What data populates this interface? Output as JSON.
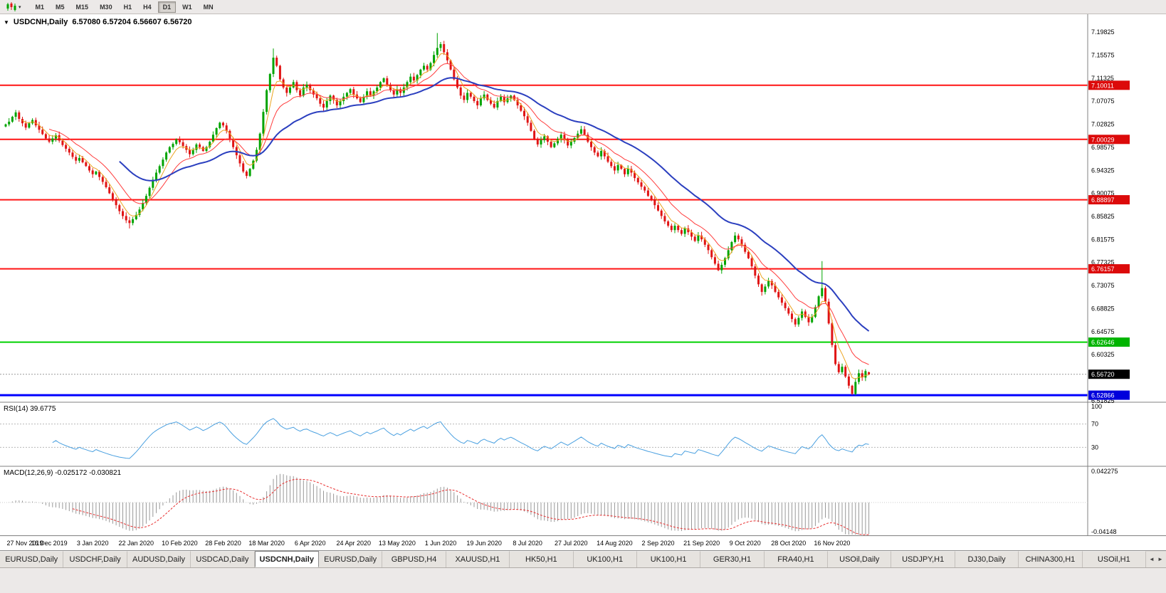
{
  "toolbar": {
    "chart_menu_caret": "▾",
    "timeframes": [
      "M1",
      "M5",
      "M15",
      "M30",
      "H1",
      "H4",
      "D1",
      "W1",
      "MN"
    ],
    "active_timeframe": "D1"
  },
  "header": {
    "menu_icon": "▼",
    "symbol": "USDCNH,Daily",
    "ohlc": "6.57080 6.57204 6.56607 6.56720"
  },
  "rsi": {
    "label": "RSI(14) 39.6775"
  },
  "macd": {
    "label": "MACD(12,26,9) -0.025172 -0.030821"
  },
  "tabs": {
    "items": [
      "EURUSD,Daily",
      "USDCHF,Daily",
      "AUDUSD,Daily",
      "USDCAD,Daily",
      "USDCNH,Daily",
      "EURUSD,Daily",
      "GBPUSD,H4",
      "XAUUSD,H1",
      "HK50,H1",
      "UK100,H1",
      "UK100,H1",
      "GER30,H1",
      "FRA40,H1",
      "USOil,Daily",
      "USDJPY,H1",
      "DJ30,Daily",
      "CHINA300,H1",
      "USOil,H1"
    ],
    "active_index": 4,
    "left_arrow": "◄",
    "right_arrow": "►"
  },
  "chart_data": {
    "type": "candlestick",
    "symbol": "USDCNH",
    "timeframe": "Daily",
    "last_ohlc": {
      "open": 6.5708,
      "high": 6.57204,
      "low": 6.56607,
      "close": 6.5672
    },
    "current_price": 6.5672,
    "current_price_label": "6.56720",
    "current_price_badge": "#000000",
    "up_color": "#00a400",
    "down_color": "#e01414",
    "y_axis": {
      "max": 7.2311,
      "min": 6.5156,
      "tick_labels": [
        "7.19825",
        "7.15575",
        "7.11325",
        "7.07075",
        "7.02825",
        "6.98575",
        "6.94325",
        "6.90075",
        "6.85825",
        "6.81575",
        "6.77325",
        "6.73075",
        "6.68825",
        "6.64575",
        "6.60325",
        "6.51825"
      ]
    },
    "h_lines": [
      {
        "price": 7.10011,
        "label": "7.10011",
        "line_color": "#ff1414",
        "badge_color": "#dc0a0a",
        "width": 2
      },
      {
        "price": 7.00029,
        "label": "7.00029",
        "line_color": "#ff1414",
        "badge_color": "#dc0a0a",
        "width": 2
      },
      {
        "price": 6.88897,
        "label": "6.88897",
        "line_color": "#ff1414",
        "badge_color": "#dc0a0a",
        "width": 2
      },
      {
        "price": 6.76157,
        "label": "6.76157",
        "line_color": "#ff1414",
        "badge_color": "#dc0a0a",
        "width": 2
      },
      {
        "price": 6.62646,
        "label": "6.62646",
        "line_color": "#00d200",
        "badge_color": "#00b400",
        "width": 2
      },
      {
        "price": 6.52866,
        "label": "6.52866",
        "line_color": "#0000ff",
        "badge_color": "#0000dc",
        "width": 3
      }
    ],
    "x_labels": [
      "27 Nov 2019",
      "16 Dec 2019",
      "3 Jan 2020",
      "22 Jan 2020",
      "10 Feb 2020",
      "28 Feb 2020",
      "18 Mar 2020",
      "6 Apr 2020",
      "24 Apr 2020",
      "13 May 2020",
      "1 Jun 2020",
      "19 Jun 2020",
      "8 Jul 2020",
      "27 Jul 2020",
      "14 Aug 2020",
      "2 Sep 2020",
      "21 Sep 2020",
      "9 Oct 2020",
      "28 Oct 2020",
      "16 Nov 2020"
    ],
    "bars_per_label": 13,
    "closes": [
      7.028,
      7.033,
      7.042,
      7.05,
      7.038,
      7.03,
      7.022,
      7.03,
      7.036,
      7.026,
      7.018,
      7.01,
      7.002,
      6.996,
      7.002,
      7.008,
      6.998,
      6.99,
      6.983,
      6.976,
      6.968,
      6.961,
      6.966,
      6.958,
      6.951,
      6.943,
      6.936,
      6.941,
      6.931,
      6.922,
      6.912,
      6.901,
      6.89,
      6.879,
      6.868,
      6.859,
      6.851,
      6.846,
      6.853,
      6.861,
      6.871,
      6.883,
      6.896,
      6.911,
      6.926,
      6.939,
      6.951,
      6.963,
      6.976,
      6.986,
      6.992,
      7.0,
      6.995,
      6.988,
      6.981,
      6.973,
      6.981,
      6.991,
      6.986,
      6.979,
      6.986,
      6.996,
      7.009,
      7.021,
      7.031,
      7.026,
      7.016,
      7.001,
      6.986,
      6.971,
      6.956,
      6.941,
      6.933,
      6.946,
      6.961,
      6.981,
      7.011,
      7.051,
      7.091,
      7.121,
      7.151,
      7.136,
      7.111,
      7.096,
      7.086,
      7.096,
      7.106,
      7.091,
      7.081,
      7.096,
      7.101,
      7.091,
      7.083,
      7.076,
      7.066,
      7.059,
      7.071,
      7.081,
      7.073,
      7.063,
      7.071,
      7.079,
      7.086,
      7.093,
      7.083,
      7.076,
      7.069,
      7.079,
      7.089,
      7.081,
      7.089,
      7.096,
      7.106,
      7.113,
      7.101,
      7.091,
      7.083,
      7.093,
      7.086,
      7.096,
      7.106,
      7.116,
      7.109,
      7.119,
      7.129,
      7.136,
      7.129,
      7.141,
      7.156,
      7.169,
      7.176,
      7.161,
      7.146,
      7.129,
      7.111,
      7.096,
      7.081,
      7.073,
      7.086,
      7.079,
      7.071,
      7.063,
      7.076,
      7.083,
      7.073,
      7.066,
      7.059,
      7.071,
      7.079,
      7.069,
      7.076,
      7.081,
      7.073,
      7.063,
      7.053,
      7.043,
      7.031,
      7.016,
      7.001,
      6.991,
      6.999,
      7.006,
      6.996,
      6.986,
      6.993,
      7.001,
      7.009,
      6.999,
      6.989,
      6.996,
      7.003,
      7.011,
      7.019,
      7.009,
      6.996,
      6.986,
      6.976,
      6.969,
      6.979,
      6.969,
      6.959,
      6.951,
      6.943,
      6.953,
      6.946,
      6.936,
      6.946,
      6.939,
      6.929,
      6.921,
      6.913,
      6.906,
      6.896,
      6.889,
      6.879,
      6.869,
      6.859,
      6.849,
      6.841,
      6.833,
      6.841,
      6.833,
      6.826,
      6.836,
      6.829,
      6.821,
      6.813,
      6.823,
      6.816,
      6.806,
      6.796,
      6.783,
      6.771,
      6.759,
      6.769,
      6.781,
      6.796,
      6.811,
      6.823,
      6.816,
      6.806,
      6.793,
      6.781,
      6.766,
      6.749,
      6.733,
      6.719,
      6.729,
      6.739,
      6.731,
      6.719,
      6.709,
      6.699,
      6.689,
      6.679,
      6.669,
      6.659,
      6.671,
      6.683,
      6.673,
      6.663,
      6.673,
      6.691,
      6.711,
      6.726,
      6.701,
      6.661,
      6.621,
      6.586,
      6.571,
      6.581,
      6.563,
      6.546,
      6.531,
      6.553,
      6.569,
      6.561,
      6.573,
      6.5672
    ],
    "wick_overrides": {
      "37": {
        "low": 6.836
      },
      "80": {
        "high": 7.168
      },
      "129": {
        "high": 7.1965
      },
      "244": {
        "high": 6.7758
      },
      "253": {
        "low": 6.529
      }
    },
    "candle_overrides": {
      "258": [
        6.5708,
        6.57204,
        6.56607,
        6.5672
      ]
    },
    "moving_averages": [
      {
        "period": 5,
        "color": "#eca420",
        "width": 1
      },
      {
        "period": 13,
        "color": "#ff3c3c",
        "width": 1
      },
      {
        "period": 34,
        "color": "#2b3fbf",
        "width": 2
      }
    ],
    "rsi": {
      "period": 14,
      "color": "#4aa0e0",
      "levels": [
        70,
        30
      ],
      "axis_labels": [
        "100",
        "70",
        "30"
      ],
      "current": "39.6775"
    },
    "macd": {
      "fast": 12,
      "slow": 26,
      "signal": 9,
      "hist_color": "#989898",
      "signal_color": "#e83030",
      "axis_top": 0.042275,
      "axis_bottom": -0.04148,
      "axis_top_label": "0.042275",
      "axis_bottom_label": "-0.04148",
      "current_main": "-0.025172",
      "current_signal": "-0.030821"
    }
  }
}
